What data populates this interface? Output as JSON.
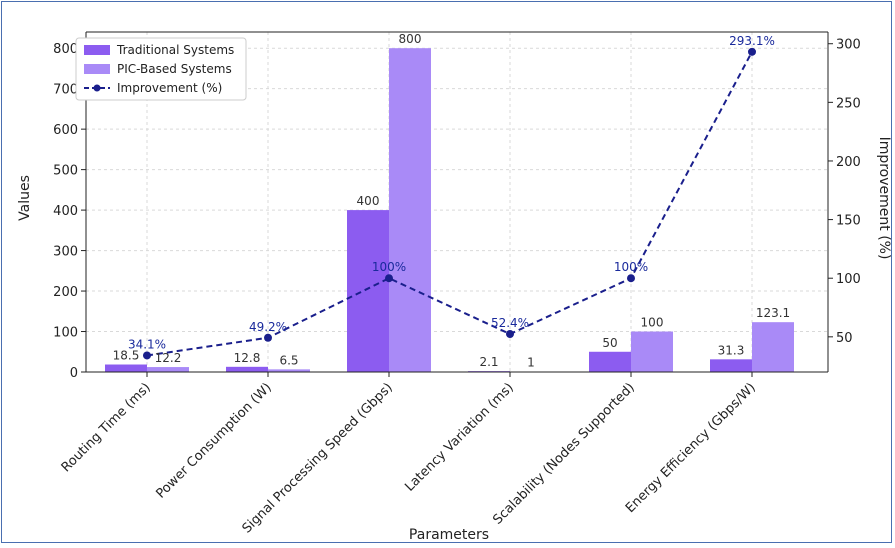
{
  "chart_data": {
    "type": "bar",
    "title": "",
    "xlabel": "Parameters",
    "ylabel": "Values",
    "y2label": "Improvement (%)",
    "ylim": [
      0,
      840
    ],
    "y2lim": [
      20,
      310
    ],
    "yticks": [
      0,
      100,
      200,
      300,
      400,
      500,
      600,
      700,
      800
    ],
    "y2ticks": [
      50,
      100,
      150,
      200,
      250,
      300
    ],
    "grid": true,
    "legend_placement": "top-left",
    "categories": [
      "Routing Time (ms)",
      "Power Consumption (W)",
      "Signal Processing Speed (Gbps)",
      "Latency Variation (ms)",
      "Scalability (Nodes Supported)",
      "Energy Efficiency (Gbps/W)"
    ],
    "series": [
      {
        "name": "Traditional Systems",
        "type": "bar",
        "axis": "left",
        "color": "#8c5cf0",
        "values": [
          18.5,
          12.8,
          400,
          2.1,
          50,
          31.3
        ],
        "labels": [
          "18.5",
          "12.8",
          "400",
          "2.1",
          "50",
          "31.3"
        ]
      },
      {
        "name": "PIC-Based Systems",
        "type": "bar",
        "axis": "left",
        "color": "#a98af7",
        "values": [
          12.2,
          6.5,
          800,
          1,
          100,
          123.1
        ],
        "labels": [
          "12.2",
          "6.5",
          "800",
          "1",
          "100",
          "123.1"
        ]
      },
      {
        "name": "Improvement (%)",
        "type": "line",
        "axis": "right",
        "color": "#1a1f8c",
        "values": [
          34.1,
          49.2,
          100,
          52.4,
          100,
          293.1
        ],
        "labels": [
          "34.1%",
          "49.2%",
          "100%",
          "52.4%",
          "100%",
          "293.1%"
        ]
      }
    ]
  }
}
